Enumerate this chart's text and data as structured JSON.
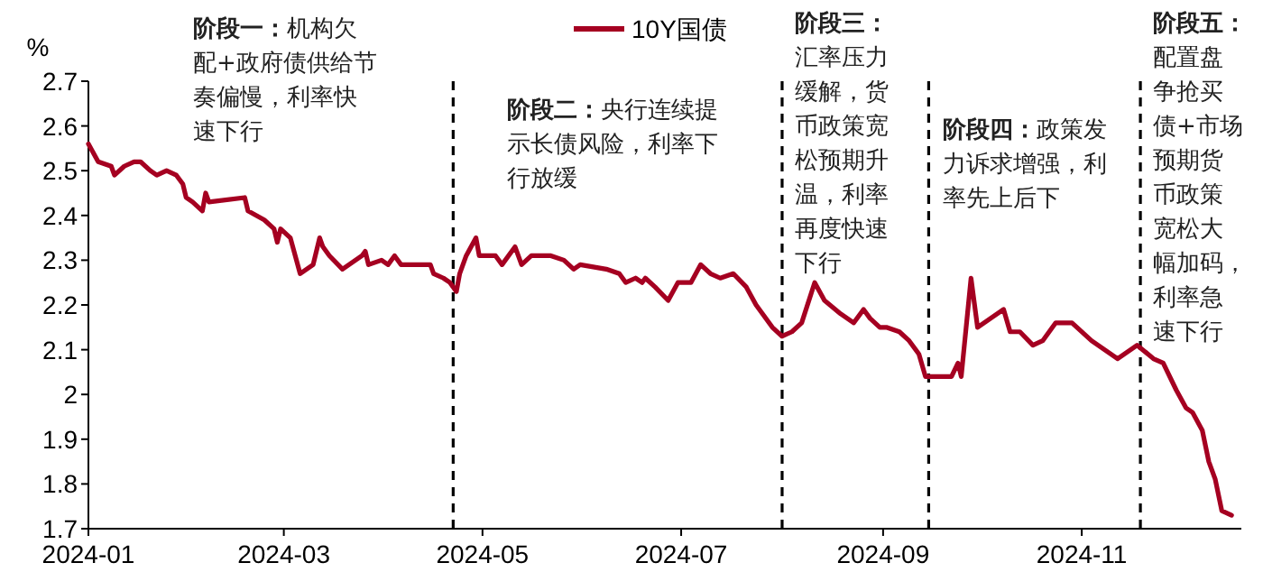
{
  "chart_data": {
    "type": "line",
    "ylabel": "%",
    "legend": "top",
    "marker": "none",
    "line_style": "solid",
    "xlim": [
      "2024-01-01",
      "2024-12-20"
    ],
    "xticks": [
      {
        "value": "2024-01-01",
        "label": "2024-01"
      },
      {
        "value": "2024-03-01",
        "label": "2024-03"
      },
      {
        "value": "2024-05-01",
        "label": "2024-05"
      },
      {
        "value": "2024-07-01",
        "label": "2024-07"
      },
      {
        "value": "2024-09-01",
        "label": "2024-09"
      },
      {
        "value": "2024-11-01",
        "label": "2024-11"
      }
    ],
    "ylim": [
      1.7,
      2.7
    ],
    "yticks": [
      1.7,
      1.8,
      1.9,
      2,
      2.1,
      2.2,
      2.3,
      2.4,
      2.5,
      2.6,
      2.7
    ],
    "x": [
      "2024-01-01",
      "2024-01-04",
      "2024-01-08",
      "2024-01-09",
      "2024-01-12",
      "2024-01-15",
      "2024-01-17",
      "2024-01-20",
      "2024-01-22",
      "2024-01-25",
      "2024-01-28",
      "2024-01-30",
      "2024-01-31",
      "2024-02-02",
      "2024-02-05",
      "2024-02-06",
      "2024-02-07",
      "2024-02-18",
      "2024-02-19",
      "2024-02-24",
      "2024-02-27",
      "2024-02-28",
      "2024-02-29",
      "2024-03-03",
      "2024-03-06",
      "2024-03-10",
      "2024-03-12",
      "2024-03-13",
      "2024-03-15",
      "2024-03-19",
      "2024-03-21",
      "2024-03-25",
      "2024-03-26",
      "2024-03-27",
      "2024-03-31",
      "2024-04-02",
      "2024-04-04",
      "2024-04-06",
      "2024-04-10",
      "2024-04-12",
      "2024-04-15",
      "2024-04-16",
      "2024-04-19",
      "2024-04-21",
      "2024-04-23",
      "2024-04-24",
      "2024-04-26",
      "2024-04-29",
      "2024-04-30",
      "2024-05-05",
      "2024-05-07",
      "2024-05-11",
      "2024-05-13",
      "2024-05-16",
      "2024-05-22",
      "2024-05-26",
      "2024-05-29",
      "2024-05-31",
      "2024-06-08",
      "2024-06-12",
      "2024-06-14",
      "2024-06-17",
      "2024-06-19",
      "2024-06-20",
      "2024-06-23",
      "2024-06-27",
      "2024-06-30",
      "2024-07-04",
      "2024-07-07",
      "2024-07-10",
      "2024-07-13",
      "2024-07-17",
      "2024-07-21",
      "2024-07-24",
      "2024-07-29",
      "2024-08-01",
      "2024-08-04",
      "2024-08-07",
      "2024-08-11",
      "2024-08-14",
      "2024-08-19",
      "2024-08-23",
      "2024-08-26",
      "2024-08-28",
      "2024-08-31",
      "2024-09-02",
      "2024-09-06",
      "2024-09-09",
      "2024-09-12",
      "2024-09-14",
      "2024-09-18",
      "2024-09-22",
      "2024-09-24",
      "2024-09-25",
      "2024-09-28",
      "2024-09-30",
      "2024-10-08",
      "2024-10-10",
      "2024-10-13",
      "2024-10-17",
      "2024-10-20",
      "2024-10-24",
      "2024-10-26",
      "2024-10-29",
      "2024-11-04",
      "2024-11-08",
      "2024-11-12",
      "2024-11-18",
      "2024-11-23",
      "2024-11-26",
      "2024-11-30",
      "2024-12-03",
      "2024-12-05",
      "2024-12-08",
      "2024-12-10",
      "2024-12-12",
      "2024-12-14",
      "2024-12-17"
    ],
    "series": [
      {
        "name": "10Y国债",
        "color": "#a50021",
        "values": [
          2.56,
          2.52,
          2.51,
          2.49,
          2.51,
          2.52,
          2.52,
          2.5,
          2.49,
          2.5,
          2.49,
          2.47,
          2.44,
          2.43,
          2.41,
          2.45,
          2.43,
          2.44,
          2.41,
          2.39,
          2.37,
          2.34,
          2.37,
          2.35,
          2.27,
          2.29,
          2.35,
          2.33,
          2.31,
          2.28,
          2.29,
          2.31,
          2.32,
          2.29,
          2.3,
          2.29,
          2.31,
          2.29,
          2.29,
          2.29,
          2.29,
          2.27,
          2.26,
          2.25,
          2.23,
          2.27,
          2.31,
          2.35,
          2.31,
          2.31,
          2.29,
          2.33,
          2.29,
          2.31,
          2.31,
          2.3,
          2.28,
          2.29,
          2.28,
          2.27,
          2.25,
          2.26,
          2.25,
          2.26,
          2.24,
          2.21,
          2.25,
          2.25,
          2.29,
          2.27,
          2.26,
          2.27,
          2.24,
          2.2,
          2.15,
          2.13,
          2.14,
          2.16,
          2.25,
          2.21,
          2.18,
          2.16,
          2.19,
          2.17,
          2.15,
          2.15,
          2.14,
          2.12,
          2.09,
          2.04,
          2.04,
          2.04,
          2.07,
          2.04,
          2.26,
          2.15,
          2.19,
          2.14,
          2.14,
          2.11,
          2.12,
          2.16,
          2.16,
          2.16,
          2.12,
          2.1,
          2.08,
          2.11,
          2.08,
          2.07,
          2.01,
          1.97,
          1.96,
          1.92,
          1.85,
          1.81,
          1.74,
          1.73
        ]
      }
    ],
    "ref_lines": [
      {
        "axis": "x",
        "value": "2024-04-22",
        "color": "#000000",
        "line_style": "dashed"
      },
      {
        "axis": "x",
        "value": "2024-08-01",
        "color": "#000000",
        "line_style": "dashed"
      },
      {
        "axis": "x",
        "value": "2024-09-15",
        "color": "#000000",
        "line_style": "dashed"
      },
      {
        "axis": "x",
        "value": "2024-11-19",
        "color": "#000000",
        "line_style": "dashed"
      }
    ],
    "annotations": [
      "**阶段一：**机构欠配+政府债供给节奏偏慢，利率快速下行",
      "**阶段二：**央行连续提示长债风险，利率下行放缓",
      "**阶段三：**汇率压力缓解，货币政策宽松预期升温，利率再度快速下行",
      "**阶段四：**政策发力诉求增强，利率先上后下",
      "**阶段五：**配置盘争抢买债+市场预期货币政策宽松大幅加码，利率急速下行"
    ]
  }
}
